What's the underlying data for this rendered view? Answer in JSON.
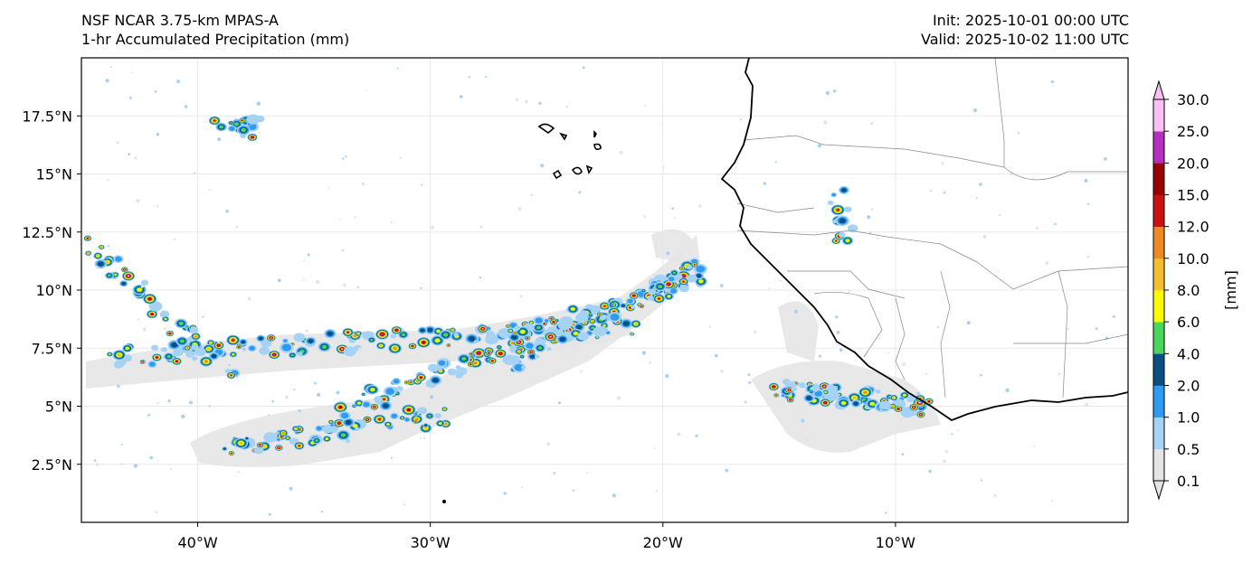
{
  "header": {
    "title_line1": "NSF NCAR 3.75-km MPAS-A",
    "title_line2": "1-hr Accumulated Precipitation (mm)",
    "init": "Init: 2025-10-01 00:00 UTC",
    "valid": "Valid: 2025-10-02 11:00 UTC"
  },
  "map": {
    "lon_range": [
      -45,
      0
    ],
    "lat_range": [
      0,
      20
    ],
    "lat_ticks": [
      {
        "value": 2.5,
        "label": "2.5°N"
      },
      {
        "value": 5,
        "label": "5°N"
      },
      {
        "value": 7.5,
        "label": "7.5°N"
      },
      {
        "value": 10,
        "label": "10°N"
      },
      {
        "value": 12.5,
        "label": "12.5°N"
      },
      {
        "value": 15,
        "label": "15°N"
      },
      {
        "value": 17.5,
        "label": "17.5°N"
      }
    ],
    "lon_ticks": [
      {
        "value": -40,
        "label": "40°W"
      },
      {
        "value": -30,
        "label": "30°W"
      },
      {
        "value": -20,
        "label": "20°W"
      },
      {
        "value": -10,
        "label": "10°W"
      }
    ],
    "gridlines": true
  },
  "colorbar": {
    "label": "[mm]",
    "levels": [
      "0.1",
      "0.5",
      "1.0",
      "2.0",
      "4.0",
      "6.0",
      "8.0",
      "10.0",
      "12.0",
      "15.0",
      "20.0",
      "25.0",
      "30.0"
    ],
    "colors": [
      "#e5e5e5",
      "#a6d2f6",
      "#2e9bf2",
      "#0a4f84",
      "#4ad65a",
      "#fcfc00",
      "#f5be30",
      "#ee8a25",
      "#cc1010",
      "#990000",
      "#b630c0",
      "#fbc0f3"
    ],
    "extend": "both"
  }
}
